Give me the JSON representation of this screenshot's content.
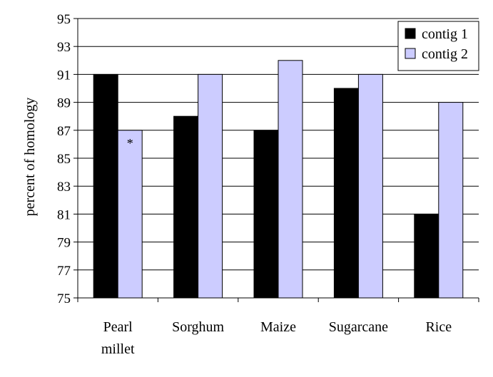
{
  "chart_data": {
    "type": "bar",
    "title": "",
    "xlabel": "",
    "ylabel": "percent of homology",
    "categories": [
      [
        "Pearl",
        "millet"
      ],
      [
        "Sorghum"
      ],
      [
        "Maize"
      ],
      [
        "Sugarcane"
      ],
      [
        "Rice"
      ]
    ],
    "series": [
      {
        "name": "contig 1",
        "color": "#000000",
        "values": [
          91,
          88,
          87,
          90,
          81
        ]
      },
      {
        "name": "contig 2",
        "color": "#ccccff",
        "values": [
          87,
          91,
          92,
          91,
          89
        ]
      }
    ],
    "ylim": [
      75,
      95
    ],
    "yticks": [
      75,
      77,
      79,
      81,
      83,
      85,
      87,
      89,
      91,
      93,
      95
    ],
    "grid": true,
    "legend_position": "top-right",
    "annotations": [
      {
        "category_index": 0,
        "series_index": 1,
        "text": "*"
      }
    ]
  }
}
